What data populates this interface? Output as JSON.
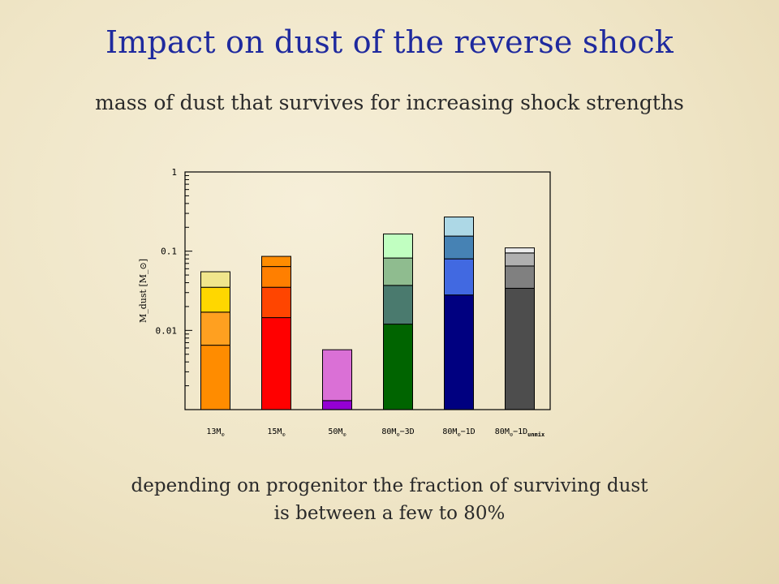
{
  "slide": {
    "title": "Impact on dust of the reverse shock",
    "subtitle": "mass of dust that survives for increasing shock strengths",
    "caption_line1": "depending on progenitor the fraction of surviving dust",
    "caption_line2": "is between a few to 80%"
  },
  "chart_data": {
    "type": "bar",
    "stacked": true,
    "yscale": "log",
    "ylim": [
      0.001,
      1
    ],
    "ylabel": "M_dust [M_⊙]",
    "yticks": [
      "0.01",
      "0.1",
      "1"
    ],
    "ytick_values": [
      0.01,
      0.1,
      1
    ],
    "grid": false,
    "categories": [
      {
        "main": "13M",
        "sub": "⊙",
        "rest": ""
      },
      {
        "main": "15M",
        "sub": "⊙",
        "rest": ""
      },
      {
        "main": "50M",
        "sub": "⊙",
        "rest": ""
      },
      {
        "main": "80M",
        "sub": "⊙",
        "rest": "−3D"
      },
      {
        "main": "80M",
        "sub": "⊙",
        "rest": "−1D"
      },
      {
        "main": "80M",
        "sub": "⊙",
        "rest": "−1D",
        "sub2": "unmix"
      }
    ],
    "bars": [
      {
        "segments": [
          {
            "top": 0.0065,
            "color": "#ff8c00"
          },
          {
            "top": 0.017,
            "color": "#ffa020"
          },
          {
            "top": 0.035,
            "color": "#ffd700"
          },
          {
            "top": 0.055,
            "color": "#f0e68c"
          }
        ]
      },
      {
        "segments": [
          {
            "top": 0.0145,
            "color": "#ff0000"
          },
          {
            "top": 0.035,
            "color": "#ff4500"
          },
          {
            "top": 0.064,
            "color": "#ff7f00"
          },
          {
            "top": 0.086,
            "color": "#ff8c00"
          }
        ]
      },
      {
        "segments": [
          {
            "top": 0.0013,
            "color": "#9400d3"
          },
          {
            "top": 0.0057,
            "color": "#da70d6"
          }
        ]
      },
      {
        "segments": [
          {
            "top": 0.012,
            "color": "#006400"
          },
          {
            "top": 0.037,
            "color": "#4a7a6e"
          },
          {
            "top": 0.082,
            "color": "#8fbc8f"
          },
          {
            "top": 0.165,
            "color": "#c1ffc1"
          }
        ]
      },
      {
        "segments": [
          {
            "top": 0.028,
            "color": "#000080"
          },
          {
            "top": 0.08,
            "color": "#4169e1"
          },
          {
            "top": 0.155,
            "color": "#4682b4"
          },
          {
            "top": 0.27,
            "color": "#add8e6"
          }
        ]
      },
      {
        "segments": [
          {
            "top": 0.034,
            "color": "#4d4d4d"
          },
          {
            "top": 0.065,
            "color": "#808080"
          },
          {
            "top": 0.095,
            "color": "#b0b0b0"
          },
          {
            "top": 0.11,
            "color": "#ececec"
          }
        ]
      }
    ]
  }
}
